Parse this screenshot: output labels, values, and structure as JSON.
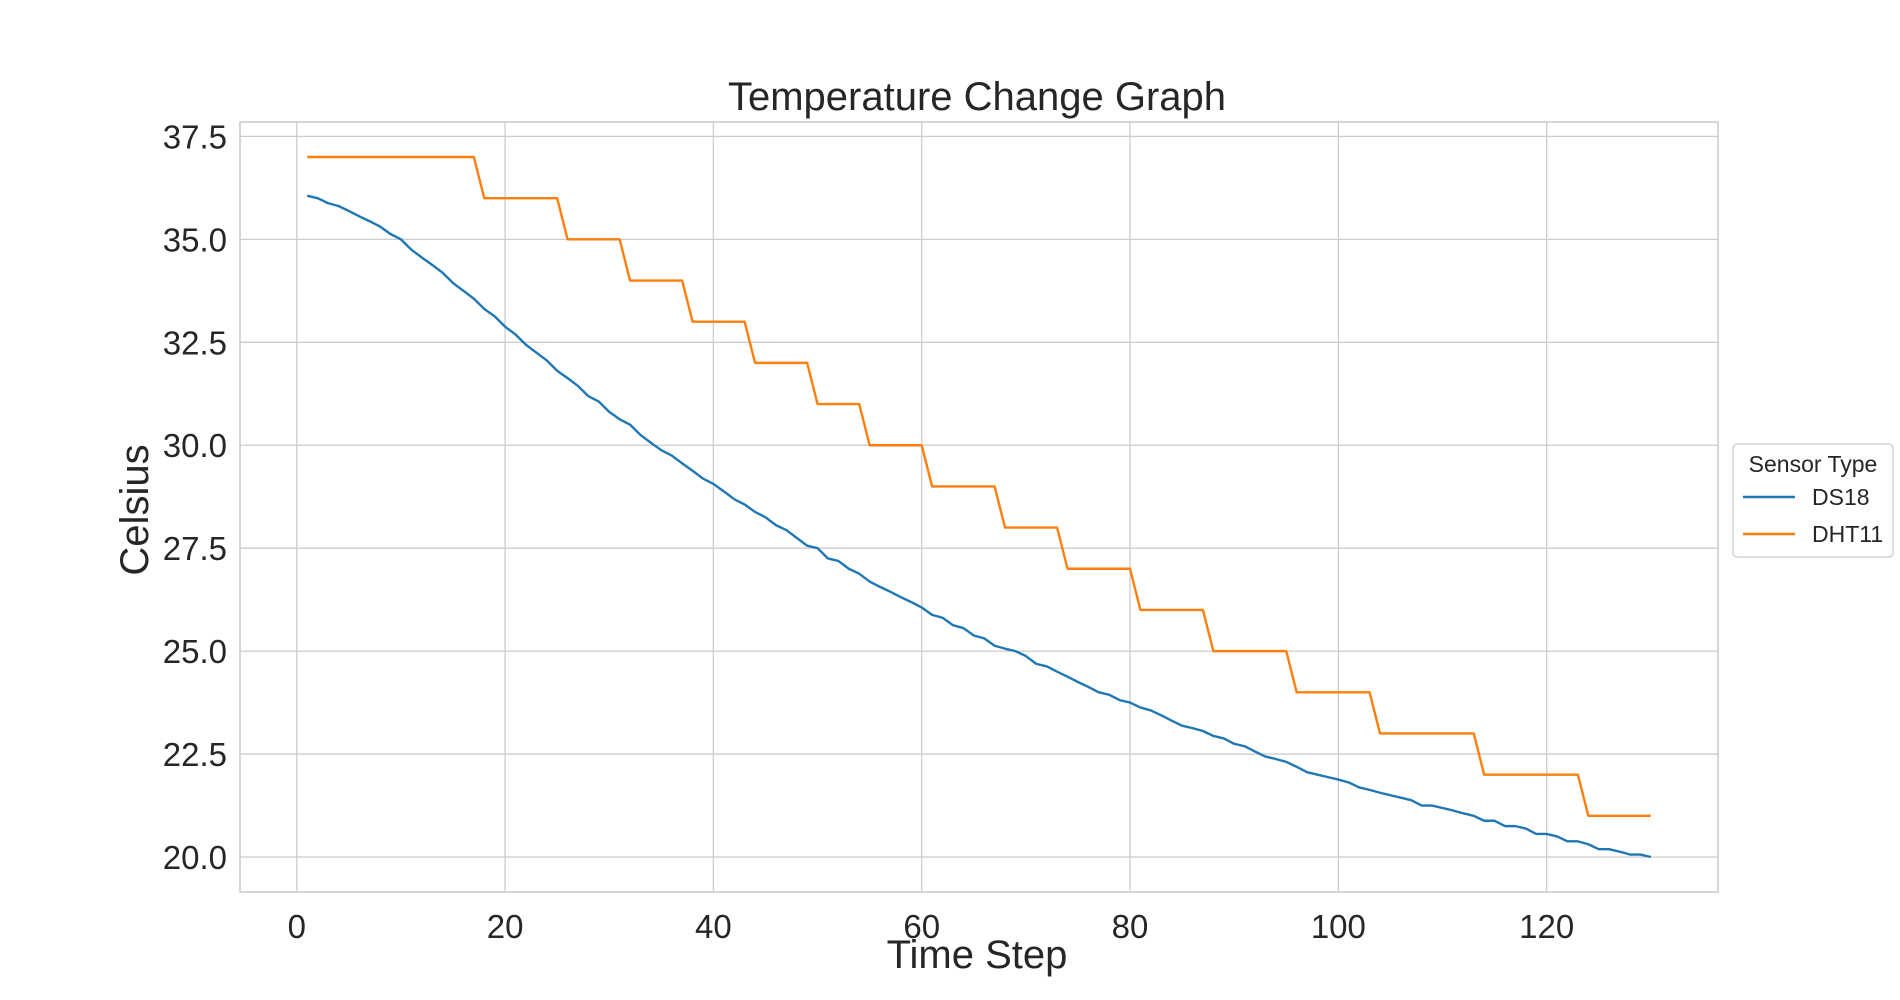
{
  "chart_data": {
    "type": "line",
    "title": "Temperature Change Graph",
    "xlabel": "Time Step",
    "ylabel": "Celsius",
    "xlim": [
      -5.45,
      136.45
    ],
    "ylim": [
      19.15,
      37.85
    ],
    "xticks": [
      0,
      20,
      40,
      60,
      80,
      100,
      120
    ],
    "xtick_labels": [
      "0",
      "20",
      "40",
      "60",
      "80",
      "100",
      "120"
    ],
    "yticks": [
      20.0,
      22.5,
      25.0,
      27.5,
      30.0,
      32.5,
      35.0,
      37.5
    ],
    "ytick_labels": [
      "20.0",
      "22.5",
      "25.0",
      "27.5",
      "30.0",
      "32.5",
      "35.0",
      "37.5"
    ],
    "grid": true,
    "legend": {
      "title": "Sensor Type",
      "placement": "center-right-outside"
    },
    "series": [
      {
        "name": "DS18",
        "color": "#1f77b4",
        "x": [
          1,
          2,
          3,
          4,
          5,
          6,
          7,
          8,
          9,
          10,
          11,
          12,
          13,
          14,
          15,
          16,
          17,
          18,
          19,
          20,
          21,
          22,
          23,
          24,
          25,
          26,
          27,
          28,
          29,
          30,
          31,
          32,
          33,
          34,
          35,
          36,
          37,
          38,
          39,
          40,
          41,
          42,
          43,
          44,
          45,
          46,
          47,
          48,
          49,
          50,
          51,
          52,
          53,
          54,
          55,
          56,
          57,
          58,
          59,
          60,
          61,
          62,
          63,
          64,
          65,
          66,
          67,
          68,
          69,
          70,
          71,
          72,
          73,
          74,
          75,
          76,
          77,
          78,
          79,
          80,
          81,
          82,
          83,
          84,
          85,
          86,
          87,
          88,
          89,
          90,
          91,
          92,
          93,
          94,
          95,
          96,
          97,
          98,
          99,
          100,
          101,
          102,
          103,
          104,
          105,
          106,
          107,
          108,
          109,
          110,
          111,
          112,
          113,
          114,
          115,
          116,
          117,
          118,
          119,
          120,
          121,
          122,
          123,
          124,
          125,
          126,
          127,
          128,
          129,
          130
        ],
        "values": [
          36.06,
          36.0,
          35.88,
          35.81,
          35.69,
          35.56,
          35.44,
          35.31,
          35.13,
          35.0,
          34.75,
          34.56,
          34.38,
          34.19,
          33.94,
          33.75,
          33.56,
          33.31,
          33.13,
          32.88,
          32.69,
          32.44,
          32.25,
          32.06,
          31.81,
          31.63,
          31.44,
          31.19,
          31.06,
          30.81,
          30.63,
          30.5,
          30.25,
          30.06,
          29.88,
          29.75,
          29.56,
          29.38,
          29.19,
          29.06,
          28.88,
          28.69,
          28.56,
          28.38,
          28.25,
          28.06,
          27.94,
          27.75,
          27.56,
          27.5,
          27.25,
          27.19,
          27.0,
          26.88,
          26.69,
          26.56,
          26.44,
          26.31,
          26.19,
          26.06,
          25.88,
          25.81,
          25.63,
          25.56,
          25.38,
          25.31,
          25.13,
          25.06,
          25.0,
          24.88,
          24.69,
          24.63,
          24.5,
          24.38,
          24.25,
          24.13,
          24.0,
          23.94,
          23.81,
          23.75,
          23.63,
          23.56,
          23.44,
          23.31,
          23.19,
          23.13,
          23.06,
          22.94,
          22.88,
          22.75,
          22.69,
          22.56,
          22.44,
          22.38,
          22.31,
          22.19,
          22.06,
          22.0,
          21.94,
          21.88,
          21.81,
          21.69,
          21.63,
          21.56,
          21.5,
          21.44,
          21.38,
          21.25,
          21.25,
          21.19,
          21.13,
          21.06,
          21.0,
          20.88,
          20.88,
          20.75,
          20.75,
          20.69,
          20.56,
          20.56,
          20.5,
          20.38,
          20.38,
          20.31,
          20.19,
          20.19,
          20.13,
          20.06,
          20.06,
          20.0
        ]
      },
      {
        "name": "DHT11",
        "color": "#ff7f0e",
        "x": [
          1,
          17,
          18,
          25,
          26,
          31,
          32,
          37,
          38,
          43,
          44,
          49,
          50,
          54,
          55,
          60,
          61,
          67,
          68,
          73,
          74,
          80,
          81,
          87,
          88,
          95,
          96,
          103,
          104,
          113,
          114,
          123,
          124,
          130
        ],
        "values": [
          37,
          37,
          36,
          36,
          35,
          35,
          34,
          34,
          33,
          33,
          32,
          32,
          31,
          31,
          30,
          30,
          29,
          29,
          28,
          28,
          27,
          27,
          26,
          26,
          25,
          25,
          24,
          24,
          23,
          23,
          22,
          22,
          21,
          21
        ]
      }
    ]
  }
}
